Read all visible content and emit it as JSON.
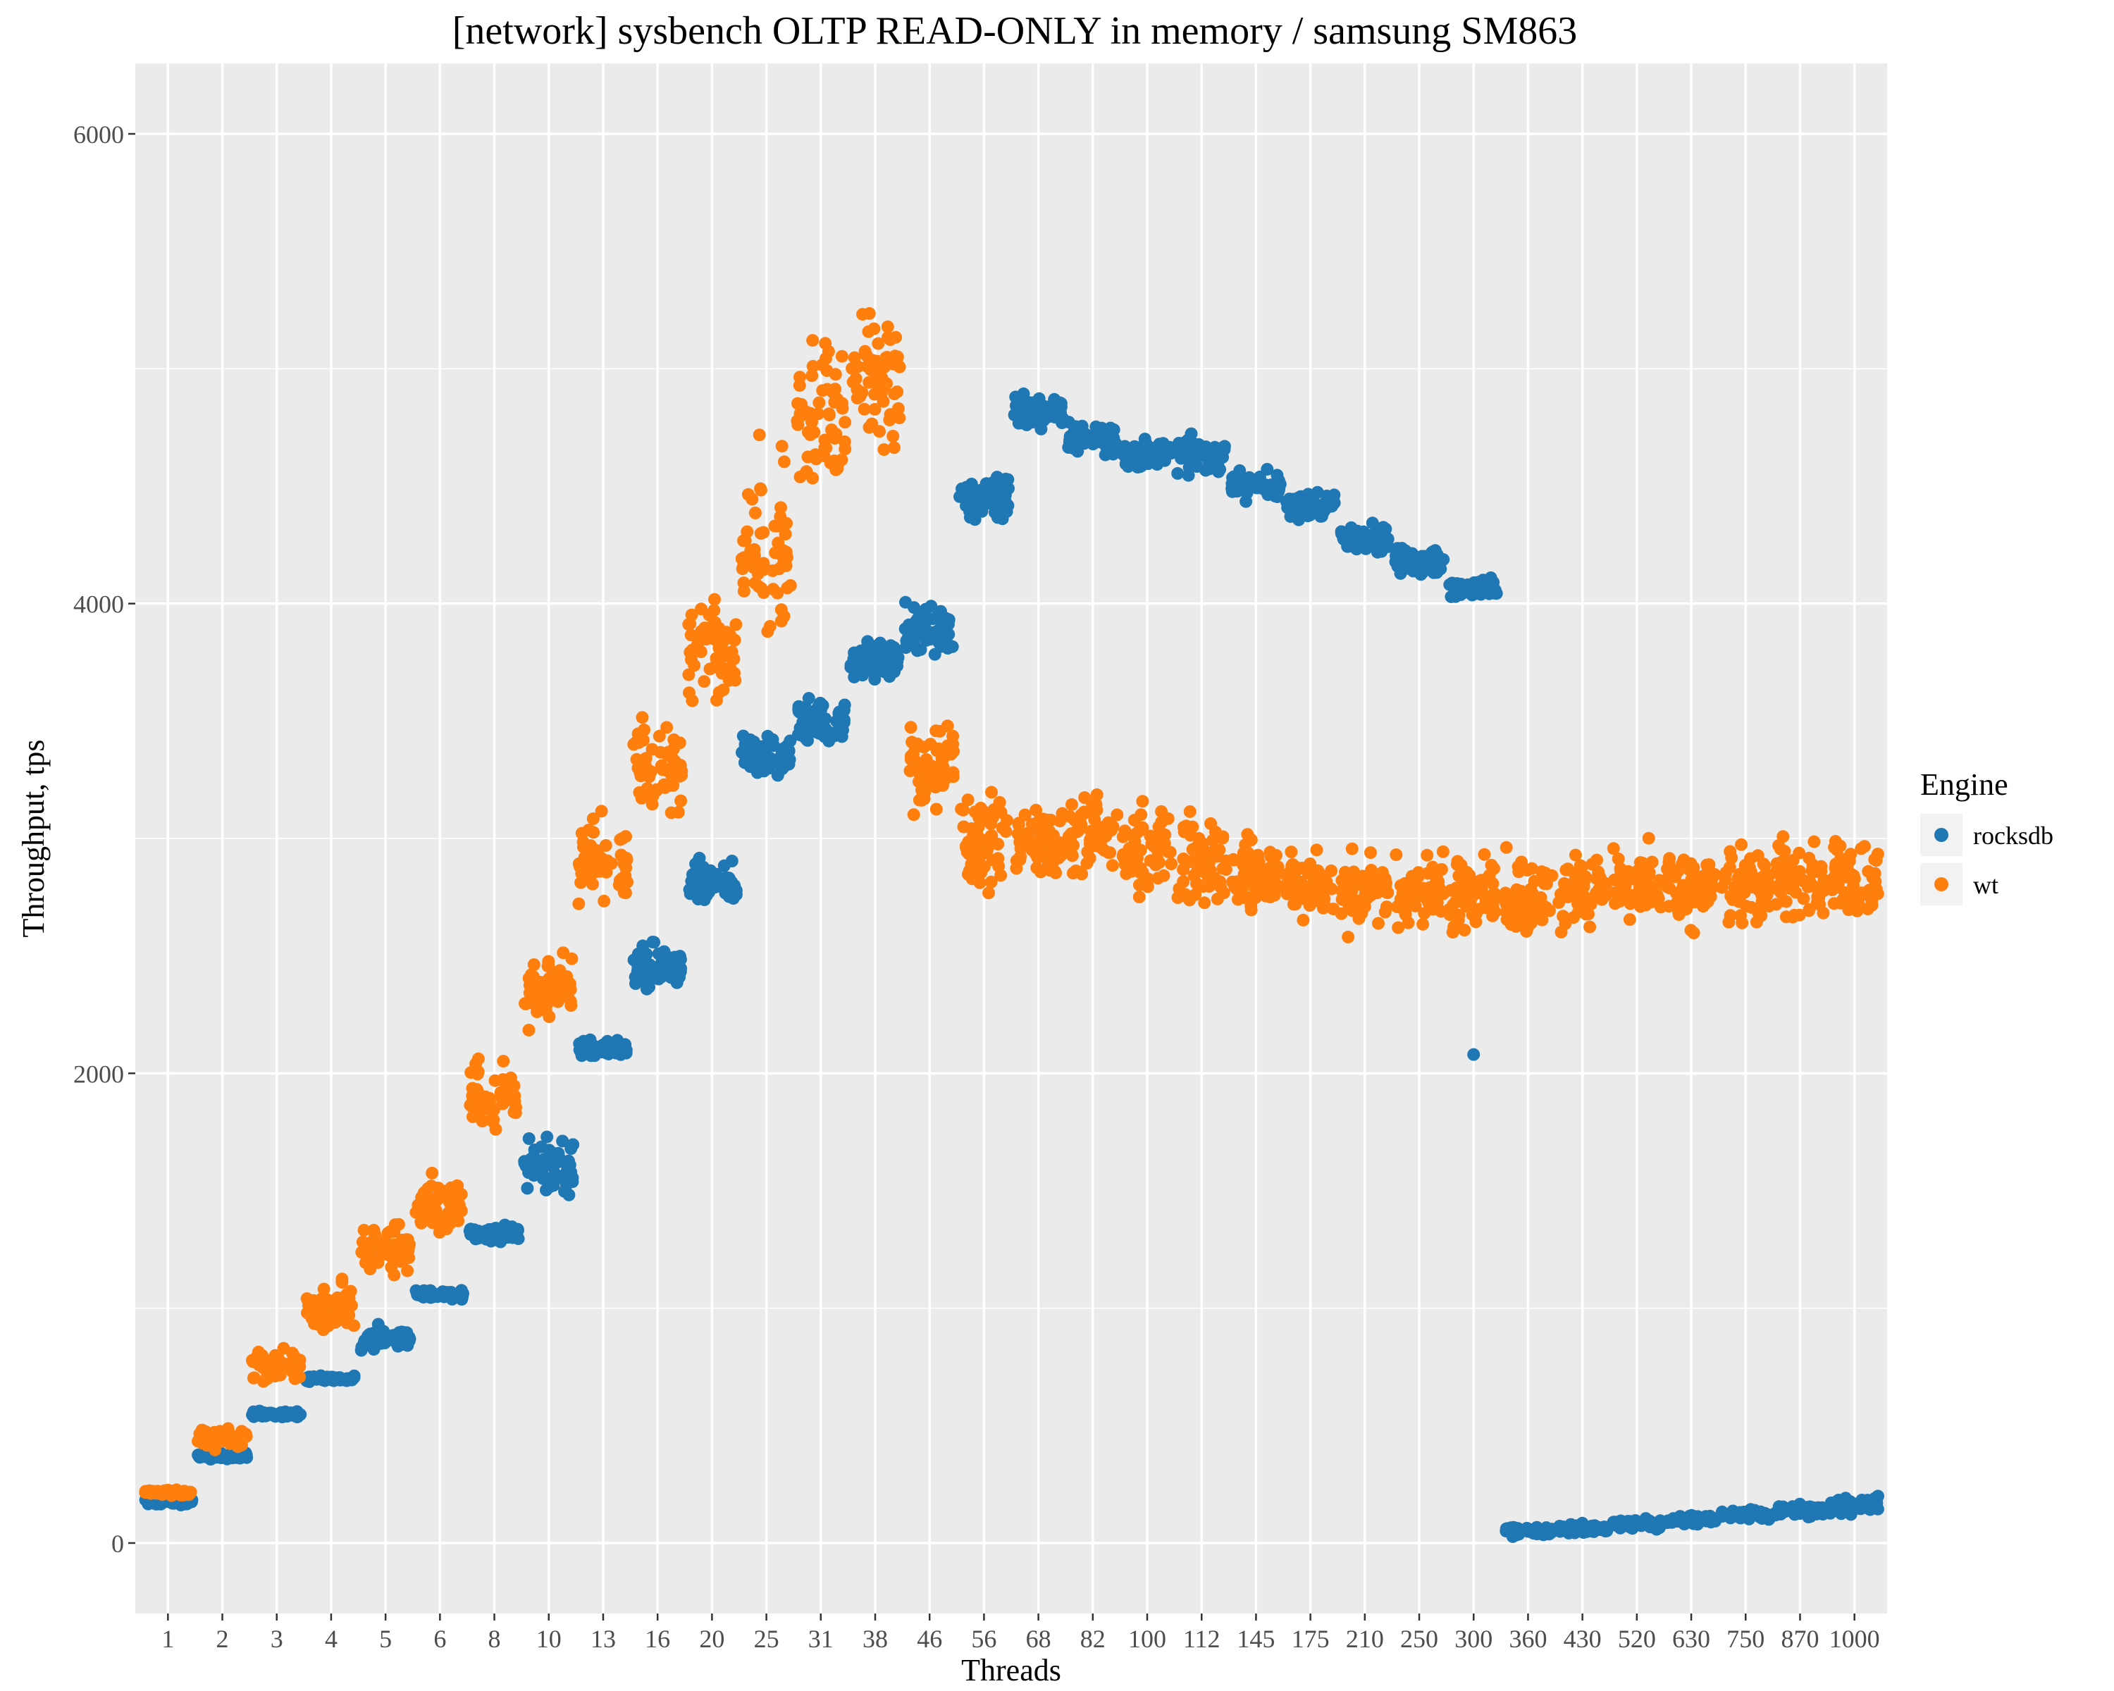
{
  "chart_data": {
    "type": "scatter",
    "title": "[network] sysbench OLTP READ-ONLY in memory / samsung SM863",
    "xlabel": "Threads",
    "ylabel": "Throughput, tps",
    "ylim": [
      -300,
      6300
    ],
    "yticks": [
      0,
      2000,
      4000,
      6000
    ],
    "x_categories": [
      "1",
      "2",
      "3",
      "4",
      "5",
      "6",
      "8",
      "10",
      "13",
      "16",
      "20",
      "25",
      "31",
      "38",
      "46",
      "56",
      "68",
      "82",
      "100",
      "112",
      "145",
      "175",
      "210",
      "250",
      "300",
      "360",
      "430",
      "520",
      "630",
      "750",
      "870",
      "1000"
    ],
    "grid": true,
    "legend": {
      "title": "Engine",
      "position": "right",
      "entries": [
        "rocksdb",
        "wt"
      ]
    },
    "colors": {
      "rocksdb": "#1f77b4",
      "wt": "#ff7f0e",
      "panel": "#ebebeb",
      "grid": "#ffffff"
    },
    "series": [
      {
        "name": "rocksdb",
        "note_points_per_category": "~60 points sampled around center with spread",
        "centers": [
          175,
          370,
          550,
          700,
          870,
          1060,
          1320,
          1600,
          2100,
          2450,
          2820,
          3350,
          3500,
          3760,
          3900,
          4450,
          4820,
          4700,
          4640,
          4630,
          4500,
          4420,
          4280,
          4180,
          4060,
          50,
          60,
          80,
          100,
          120,
          140,
          160
        ],
        "spread": [
          20,
          20,
          20,
          20,
          80,
          30,
          60,
          200,
          60,
          150,
          150,
          120,
          150,
          120,
          200,
          180,
          130,
          110,
          100,
          110,
          90,
          90,
          90,
          100,
          70,
          30,
          30,
          30,
          30,
          40,
          40,
          60
        ]
      },
      {
        "name": "wt",
        "note_points_per_category": "~60 points sampled around center with spread",
        "centers": [
          215,
          450,
          750,
          1000,
          1250,
          1450,
          1900,
          2350,
          2900,
          3300,
          3800,
          4200,
          4800,
          5000,
          3300,
          3000,
          3000,
          3000,
          2950,
          2900,
          2850,
          2800,
          2780,
          2780,
          2770,
          2750,
          2780,
          2780,
          2780,
          2800,
          2820,
          2830
        ],
        "spread": [
          20,
          70,
          100,
          150,
          180,
          200,
          250,
          250,
          300,
          300,
          350,
          600,
          500,
          500,
          300,
          300,
          300,
          300,
          300,
          300,
          250,
          250,
          250,
          250,
          250,
          250,
          250,
          250,
          250,
          280,
          280,
          280
        ]
      }
    ],
    "outliers": [
      {
        "series": "rocksdb",
        "x": "300",
        "y": 2080
      }
    ]
  }
}
